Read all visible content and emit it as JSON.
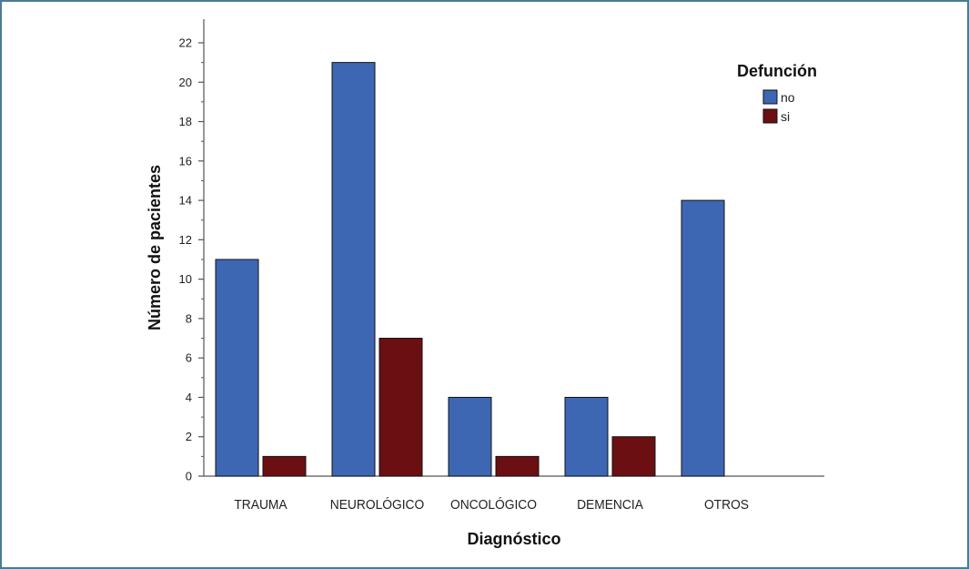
{
  "chart_data": {
    "type": "bar",
    "title": "",
    "xlabel": "Diagnóstico",
    "ylabel": "Número de pacientes",
    "categories": [
      "TRAUMA",
      "NEUROLÓGICO",
      "ONCOLÓGICO",
      "DEMENCIA",
      "OTROS"
    ],
    "series": [
      {
        "name": "no",
        "values": [
          11,
          21,
          4,
          4,
          14
        ],
        "color": "#3d67b3"
      },
      {
        "name": "si",
        "values": [
          1,
          7,
          1,
          2,
          0
        ],
        "color": "#6b0f12"
      }
    ],
    "ylim": [
      0,
      22
    ],
    "yticks": [
      0,
      2,
      4,
      6,
      8,
      10,
      12,
      14,
      16,
      18,
      20,
      22
    ],
    "grid": false,
    "legend": {
      "title": "Defunción",
      "placement": "top-right"
    }
  },
  "colors": {
    "frame_border": "#4a7a96",
    "axis": "#555555"
  }
}
